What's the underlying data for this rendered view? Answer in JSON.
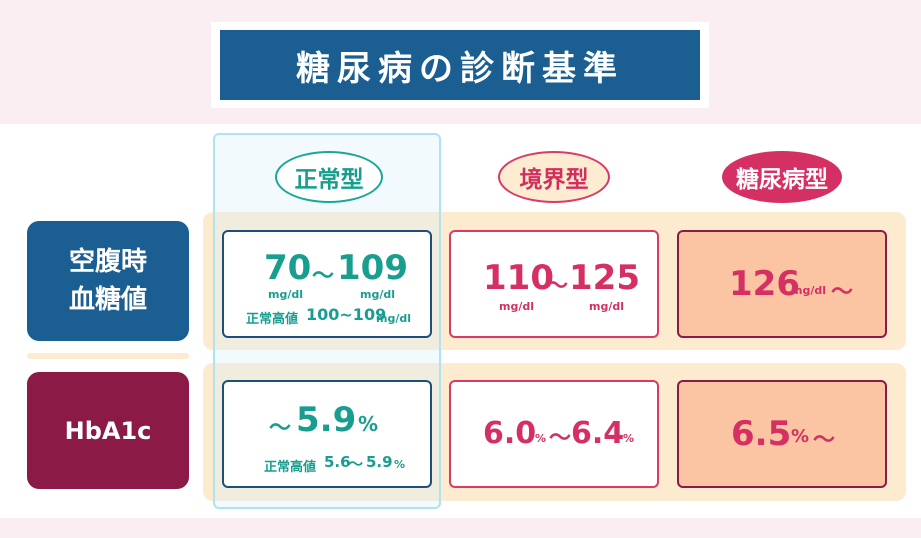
{
  "title": "糖尿病の診断基準",
  "columns": {
    "normal": "正常型",
    "borderline": "境界型",
    "diabetes": "糖尿病型"
  },
  "rows": {
    "fasting_line1": "空腹時",
    "fasting_line2": "血糖値",
    "hba1c": "HbA1c"
  },
  "fasting": {
    "normal": {
      "low": "70",
      "tilde": "～",
      "high": "109",
      "unit": "mg/dl",
      "note_label": "正常高値",
      "note_range": "100~109",
      "note_unit": "mg/dl"
    },
    "borderline": {
      "low": "110",
      "tilde": "～",
      "high": "125",
      "unit": "mg/dl"
    },
    "diabetes": {
      "value": "126",
      "unit": "mg/dl",
      "tilde": "～"
    }
  },
  "hba1c": {
    "normal": {
      "tilde": "～",
      "value": "5.9",
      "unit": "%",
      "note_label": "正常高値",
      "note_low": "5.6",
      "note_tilde": "～",
      "note_high": "5.9",
      "note_unit": "%"
    },
    "borderline": {
      "low": "6.0",
      "low_unit": "%",
      "tilde": "～",
      "high": "6.4",
      "high_unit": "%"
    },
    "diabetes": {
      "value": "6.5",
      "unit": "%",
      "tilde": "～"
    }
  }
}
